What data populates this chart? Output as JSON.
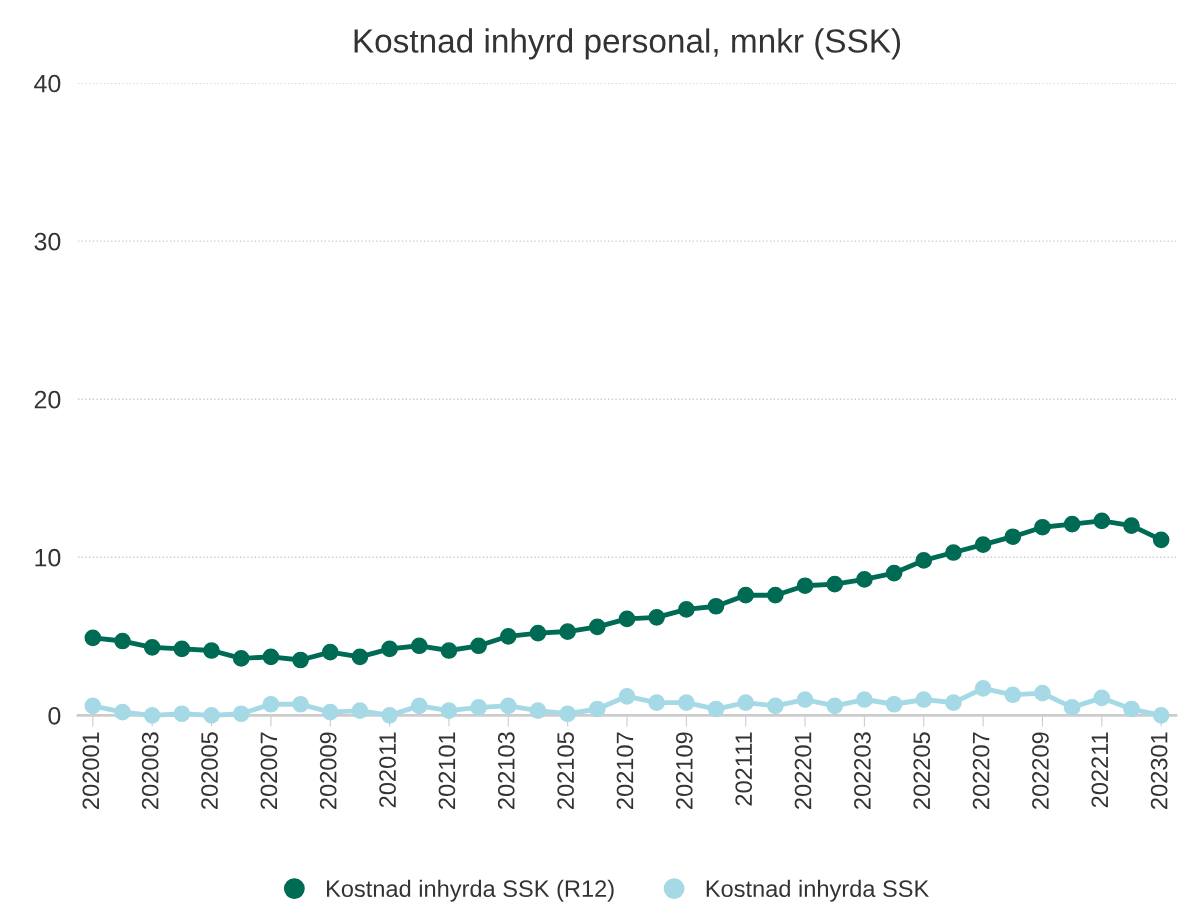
{
  "chart_data": {
    "type": "line",
    "title": "Kostnad inhyrd personal, mnkr (SSK)",
    "categories": [
      "202001",
      null,
      "202003",
      null,
      "202005",
      null,
      "202007",
      null,
      "202009",
      null,
      "202011",
      null,
      "202101",
      null,
      "202103",
      null,
      "202105",
      null,
      "202107",
      null,
      "202109",
      null,
      "202111",
      null,
      "202201",
      null,
      "202203",
      null,
      "202205",
      null,
      "202207",
      null,
      "202209",
      null,
      "202211",
      null,
      "202301"
    ],
    "series": [
      {
        "name": "Kostnad inhyrda SSK (R12)",
        "color": "#006b54",
        "values": [
          4.9,
          4.7,
          4.3,
          4.2,
          4.1,
          3.6,
          3.7,
          3.5,
          4.0,
          3.7,
          4.2,
          4.4,
          4.1,
          4.4,
          5.0,
          5.2,
          5.3,
          5.6,
          6.1,
          6.2,
          6.7,
          6.9,
          7.6,
          7.6,
          8.2,
          8.3,
          8.6,
          9.0,
          9.8,
          10.3,
          10.8,
          11.3,
          11.9,
          12.1,
          12.3,
          12.0,
          11.1
        ]
      },
      {
        "name": "Kostnad inhyrda SSK",
        "color": "#a6d9e6",
        "values": [
          0.6,
          0.2,
          0.0,
          0.1,
          0.0,
          0.1,
          0.7,
          0.7,
          0.2,
          0.3,
          0.0,
          0.6,
          0.3,
          0.5,
          0.6,
          0.3,
          0.1,
          0.4,
          1.2,
          0.8,
          0.8,
          0.4,
          0.8,
          0.6,
          1.0,
          0.6,
          1.0,
          0.7,
          1.0,
          0.8,
          1.7,
          1.3,
          1.4,
          0.5,
          1.1,
          0.4,
          0.0
        ]
      }
    ],
    "ylim": [
      0,
      40
    ],
    "yticks": [
      0,
      10,
      20,
      30,
      40
    ],
    "grid": "y",
    "legend": "bottom",
    "marker": "circle",
    "line_style": "solid"
  }
}
